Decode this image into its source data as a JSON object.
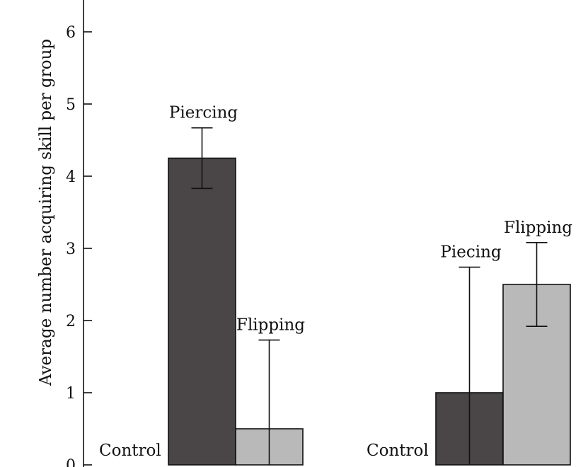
{
  "chart_data": {
    "type": "bar",
    "ylabel": "Average number acquiring skill per group",
    "xlabel": "",
    "ylim": [
      0,
      7
    ],
    "yticks": [
      0,
      1,
      2,
      3,
      4,
      5,
      6
    ],
    "grid": false,
    "legend": "none",
    "groups": [
      {
        "bars": [
          {
            "label": "Control",
            "value": 0,
            "error": null,
            "color": "#ffffff"
          },
          {
            "label": "Piercing",
            "value": 4.25,
            "error": 0.42,
            "color": "#4a4546"
          },
          {
            "label": "Flipping",
            "value": 0.5,
            "error": 1.23,
            "color": "#b9b9b9"
          }
        ]
      },
      {
        "bars": [
          {
            "label": "Control",
            "value": 0,
            "error": null,
            "color": "#ffffff"
          },
          {
            "label": "Piecing",
            "value": 1.0,
            "error": 1.74,
            "color": "#4a4546"
          },
          {
            "label": "Flipping",
            "value": 2.5,
            "error": 0.58,
            "color": "#b9b9b9"
          }
        ]
      }
    ]
  }
}
